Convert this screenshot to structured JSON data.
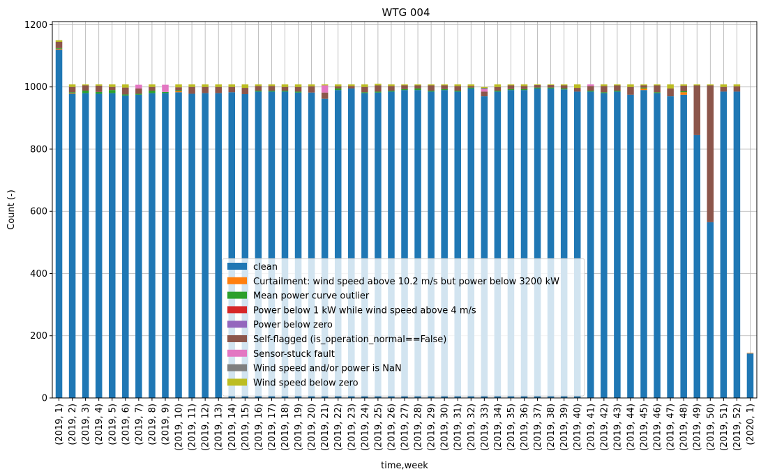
{
  "chart_data": {
    "type": "bar",
    "stacked": true,
    "title": "WTG 004",
    "xlabel": "time,week",
    "ylabel": "Count (-)",
    "ylim": [
      0,
      1210
    ],
    "yticks": [
      0,
      200,
      400,
      600,
      800,
      1000,
      1200
    ],
    "grid": true,
    "legend_position": "lower-center",
    "categories": [
      "(2019, 1)",
      "(2019, 2)",
      "(2019, 3)",
      "(2019, 4)",
      "(2019, 5)",
      "(2019, 6)",
      "(2019, 7)",
      "(2019, 8)",
      "(2019, 9)",
      "(2019, 10)",
      "(2019, 11)",
      "(2019, 12)",
      "(2019, 13)",
      "(2019, 14)",
      "(2019, 15)",
      "(2019, 16)",
      "(2019, 17)",
      "(2019, 18)",
      "(2019, 19)",
      "(2019, 20)",
      "(2019, 21)",
      "(2019, 22)",
      "(2019, 23)",
      "(2019, 24)",
      "(2019, 25)",
      "(2019, 26)",
      "(2019, 27)",
      "(2019, 28)",
      "(2019, 29)",
      "(2019, 30)",
      "(2019, 31)",
      "(2019, 32)",
      "(2019, 33)",
      "(2019, 34)",
      "(2019, 35)",
      "(2019, 36)",
      "(2019, 37)",
      "(2019, 38)",
      "(2019, 39)",
      "(2019, 40)",
      "(2019, 41)",
      "(2019, 42)",
      "(2019, 43)",
      "(2019, 44)",
      "(2019, 45)",
      "(2019, 46)",
      "(2019, 47)",
      "(2019, 48)",
      "(2019, 49)",
      "(2019, 50)",
      "(2019, 51)",
      "(2019, 52)",
      "(2020, 1)"
    ],
    "series": [
      {
        "name": "clean",
        "color": "#1f77b4",
        "values": [
          1120,
          978,
          980,
          978,
          980,
          972,
          975,
          980,
          980,
          983,
          978,
          980,
          980,
          983,
          977,
          985,
          985,
          985,
          982,
          982,
          962,
          990,
          995,
          980,
          982,
          985,
          990,
          990,
          985,
          990,
          985,
          995,
          970,
          985,
          990,
          990,
          995,
          995,
          992,
          985,
          985,
          980,
          985,
          975,
          990,
          980,
          970,
          975,
          845,
          565,
          985,
          985,
          143
        ]
      },
      {
        "name": "Curtailment: wind speed above 10.2 m/s but power below 3200 kW",
        "color": "#ff7f0e",
        "values": [
          3,
          2,
          0,
          0,
          0,
          0,
          0,
          0,
          0,
          3,
          0,
          0,
          0,
          0,
          0,
          0,
          0,
          0,
          0,
          0,
          0,
          0,
          0,
          0,
          0,
          0,
          0,
          0,
          0,
          0,
          0,
          0,
          0,
          0,
          0,
          0,
          0,
          0,
          0,
          0,
          0,
          0,
          0,
          0,
          5,
          0,
          0,
          8,
          0,
          0,
          0,
          0,
          2
        ]
      },
      {
        "name": "Mean power curve outlier",
        "color": "#2ca02c",
        "values": [
          2,
          3,
          8,
          6,
          10,
          4,
          3,
          8,
          4,
          3,
          0,
          0,
          0,
          0,
          0,
          3,
          3,
          3,
          3,
          0,
          0,
          5,
          0,
          3,
          3,
          3,
          3,
          5,
          3,
          3,
          3,
          3,
          0,
          3,
          3,
          3,
          3,
          3,
          3,
          0,
          3,
          3,
          3,
          0,
          3,
          3,
          0,
          3,
          0,
          0,
          0,
          0,
          0
        ]
      },
      {
        "name": "Power below 1 kW while wind speed above 4 m/s",
        "color": "#d62728",
        "values": [
          0,
          0,
          0,
          0,
          0,
          0,
          0,
          0,
          0,
          0,
          0,
          0,
          0,
          0,
          0,
          0,
          0,
          0,
          0,
          0,
          0,
          0,
          0,
          0,
          0,
          0,
          0,
          0,
          0,
          0,
          0,
          0,
          0,
          0,
          0,
          0,
          0,
          0,
          0,
          0,
          0,
          0,
          0,
          0,
          0,
          0,
          0,
          0,
          0,
          0,
          0,
          0,
          0
        ]
      },
      {
        "name": "Power below zero",
        "color": "#9467bd",
        "values": [
          0,
          0,
          0,
          0,
          0,
          0,
          0,
          0,
          0,
          0,
          0,
          0,
          0,
          0,
          0,
          0,
          0,
          0,
          0,
          0,
          0,
          0,
          0,
          0,
          0,
          0,
          0,
          0,
          0,
          0,
          0,
          0,
          0,
          0,
          0,
          0,
          0,
          0,
          0,
          0,
          0,
          0,
          0,
          0,
          0,
          0,
          0,
          0,
          0,
          0,
          0,
          0,
          0
        ]
      },
      {
        "name": "Self-flagged (is_operation_normal==False)",
        "color": "#8c564b",
        "values": [
          20,
          17,
          17,
          20,
          10,
          22,
          17,
          12,
          0,
          10,
          22,
          20,
          20,
          17,
          20,
          15,
          15,
          12,
          15,
          20,
          20,
          7,
          8,
          17,
          20,
          15,
          12,
          10,
          17,
          12,
          15,
          5,
          15,
          12,
          12,
          10,
          8,
          8,
          10,
          12,
          15,
          20,
          17,
          25,
          7,
          22,
          25,
          18,
          160,
          440,
          15,
          17,
          0
        ]
      },
      {
        "name": "Sensor-stuck fault",
        "color": "#e377c2",
        "values": [
          0,
          0,
          0,
          0,
          0,
          0,
          12,
          0,
          23,
          0,
          0,
          0,
          0,
          0,
          0,
          0,
          0,
          0,
          0,
          0,
          23,
          0,
          0,
          0,
          0,
          0,
          0,
          0,
          0,
          0,
          0,
          0,
          8,
          0,
          0,
          0,
          0,
          0,
          0,
          0,
          5,
          0,
          0,
          0,
          0,
          0,
          0,
          0,
          0,
          0,
          0,
          0,
          0
        ]
      },
      {
        "name": "Wind speed and/or power is NaN",
        "color": "#7f7f7f",
        "values": [
          0,
          0,
          0,
          0,
          0,
          0,
          0,
          0,
          0,
          0,
          0,
          0,
          0,
          0,
          0,
          0,
          0,
          0,
          0,
          0,
          0,
          0,
          0,
          0,
          0,
          0,
          0,
          0,
          0,
          0,
          0,
          0,
          4,
          0,
          0,
          0,
          0,
          0,
          0,
          0,
          0,
          0,
          0,
          0,
          0,
          0,
          0,
          0,
          0,
          0,
          0,
          0,
          0
        ]
      },
      {
        "name": "Wind speed below zero",
        "color": "#bcbd22",
        "values": [
          5,
          8,
          3,
          4,
          8,
          10,
          0,
          8,
          0,
          9,
          8,
          8,
          8,
          8,
          11,
          5,
          5,
          8,
          8,
          6,
          3,
          6,
          5,
          8,
          5,
          5,
          3,
          3,
          3,
          3,
          5,
          5,
          3,
          8,
          3,
          5,
          2,
          2,
          3,
          11,
          0,
          5,
          3,
          8,
          3,
          3,
          13,
          4,
          3,
          3,
          8,
          6,
          0
        ]
      }
    ]
  }
}
